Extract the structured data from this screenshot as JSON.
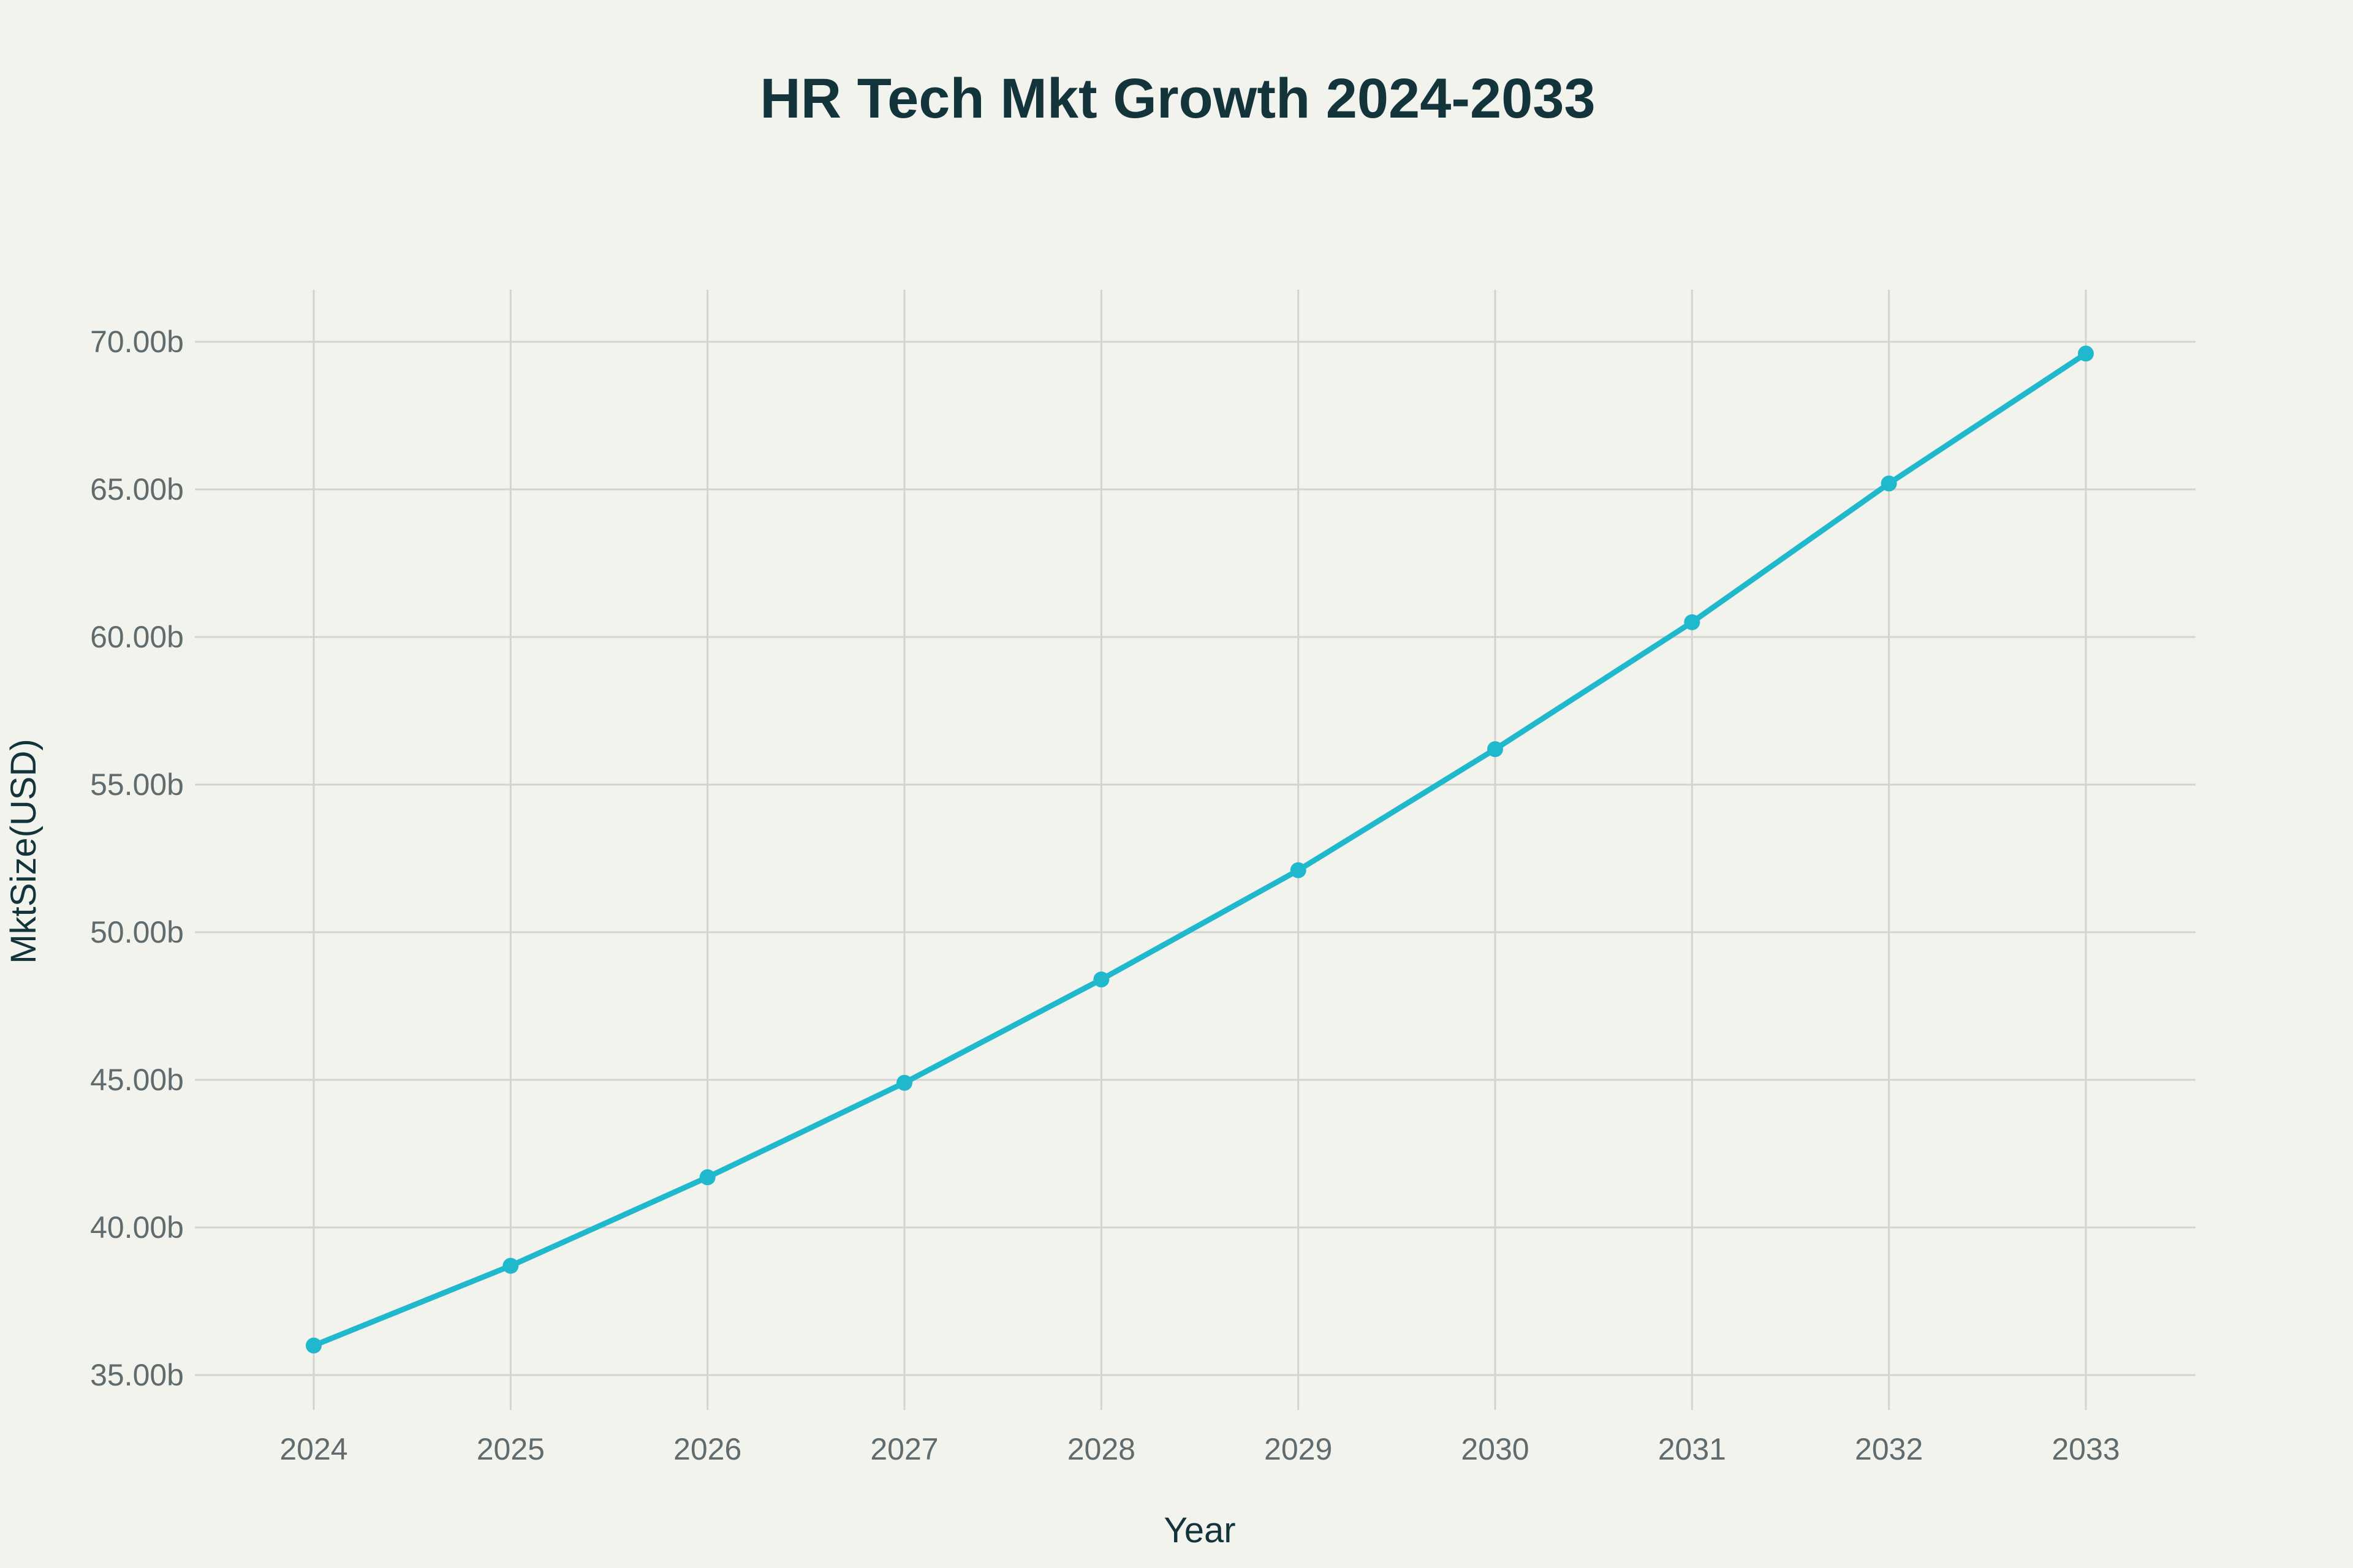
{
  "chart_data": {
    "type": "line",
    "title": "HR Tech Mkt Growth 2024-2033",
    "xlabel": "Year",
    "ylabel": "MktSize(USD)",
    "x": [
      2024,
      2025,
      2026,
      2027,
      2028,
      2029,
      2030,
      2031,
      2032,
      2033
    ],
    "series": [
      {
        "values": [
          36.0,
          38.7,
          41.7,
          44.9,
          48.4,
          52.1,
          56.2,
          60.5,
          65.2,
          69.6
        ]
      }
    ],
    "x_tick_labels": [
      "2024",
      "2025",
      "2026",
      "2027",
      "2028",
      "2029",
      "2030",
      "2031",
      "2032",
      "2033"
    ],
    "y_ticks": [
      35,
      40,
      45,
      50,
      55,
      60,
      65,
      70
    ],
    "y_tick_labels": [
      "35.00b",
      "40.00b",
      "45.00b",
      "50.00b",
      "55.00b",
      "60.00b",
      "65.00b",
      "70.00b"
    ],
    "ylim": [
      35,
      70
    ],
    "grid": true,
    "legend": "none",
    "colors": {
      "line": "#1fb8cd",
      "background": "#f3f3ee",
      "title": "#13343b"
    }
  }
}
